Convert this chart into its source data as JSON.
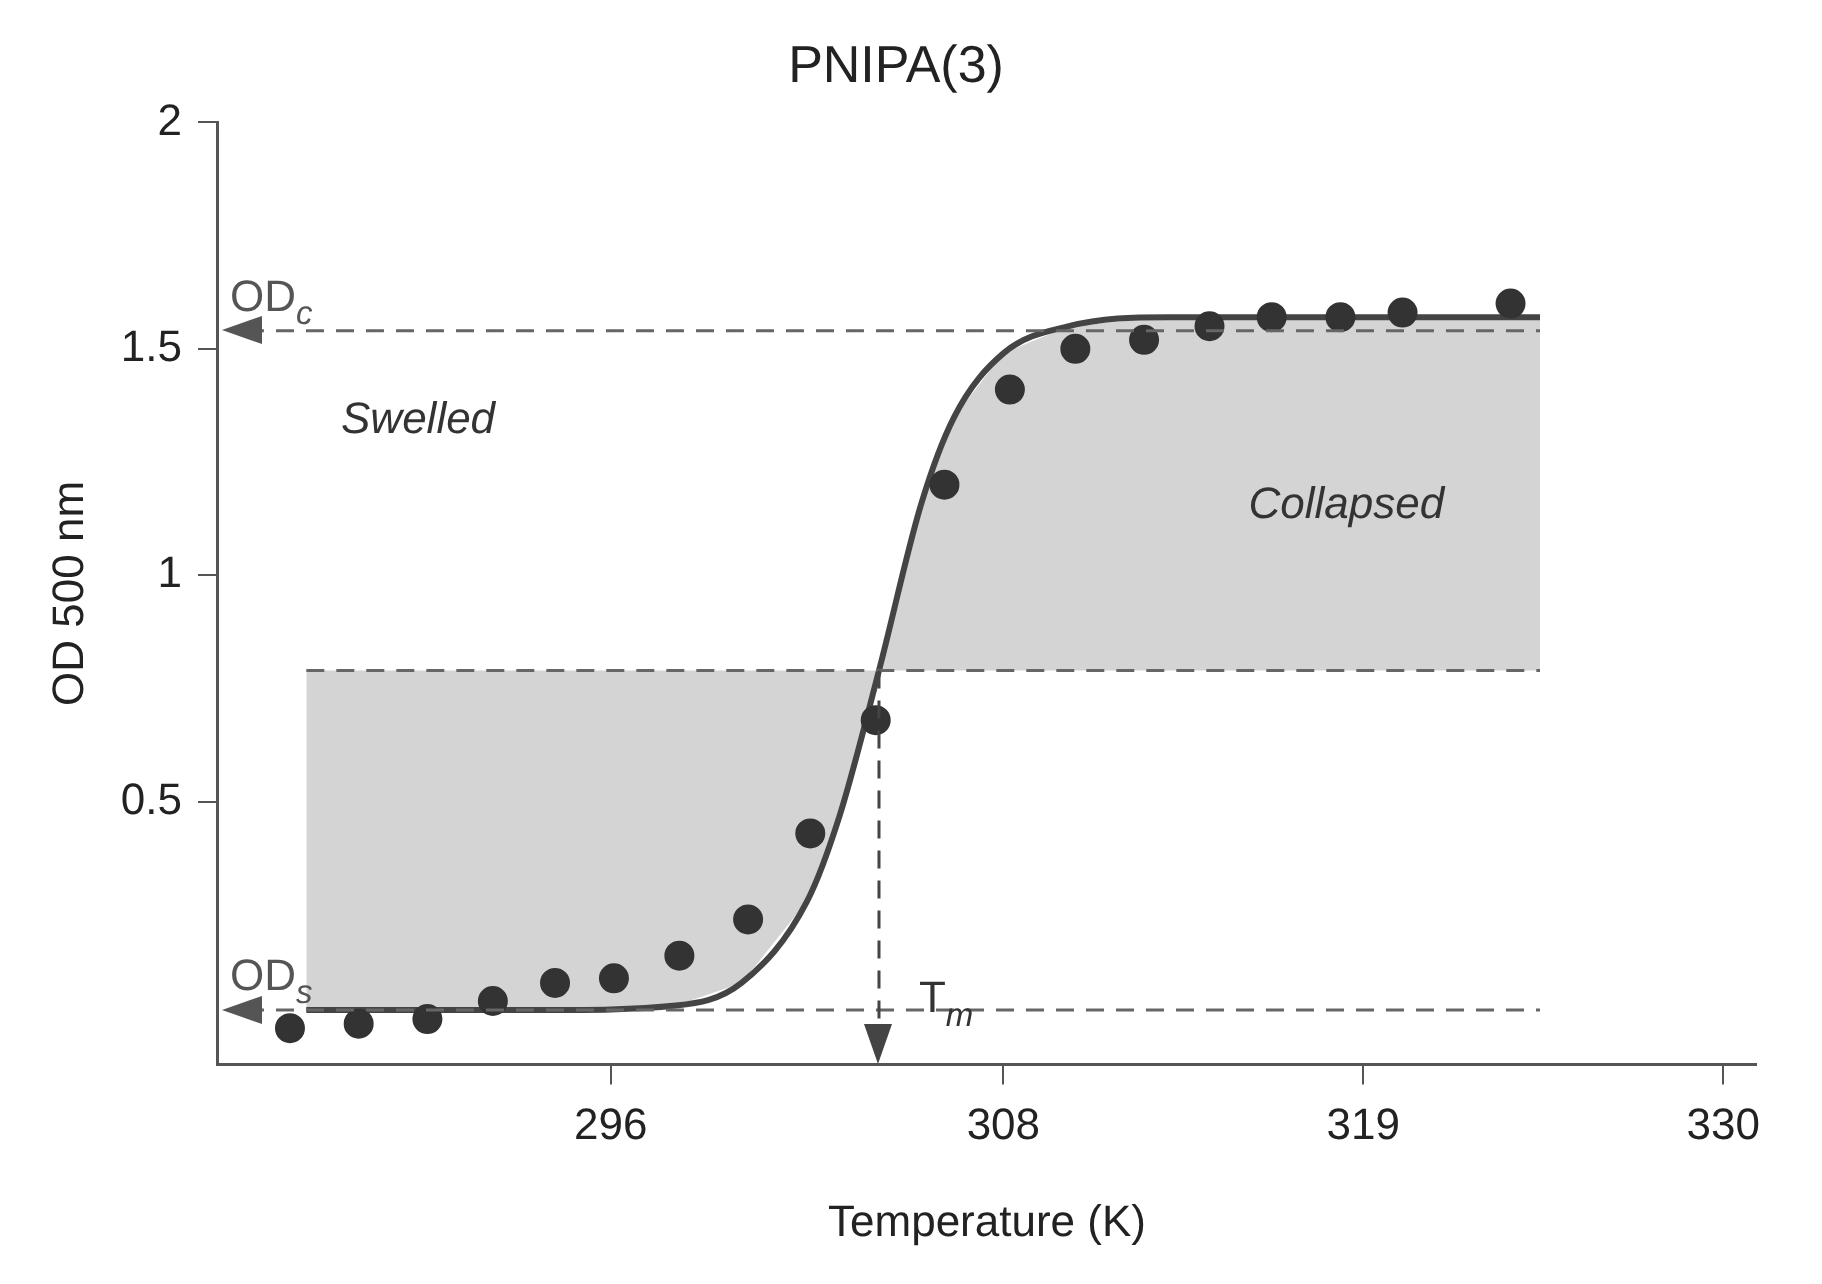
{
  "chart_data": {
    "type": "scatter",
    "title": "PNIPA(3)",
    "xlabel": "Temperature (K)",
    "ylabel": "OD 500 nm",
    "xlim": [
      284,
      331
    ],
    "xticks": [
      296,
      308,
      319,
      330
    ],
    "ylim": [
      -0.08,
      2
    ],
    "yticks": [
      0.5,
      1,
      1.5,
      2
    ],
    "grid": false,
    "legend": false,
    "marker": "circle",
    "series": [
      {
        "type": "scatter",
        "color": "#333333",
        "x": [
          286.2,
          288.3,
          290.4,
          292.4,
          294.3,
          296.1,
          298.1,
          300.2,
          302.1,
          304.1,
          306.2,
          308.2,
          310.2,
          312.3,
          314.3,
          316.2,
          318.3,
          320.2,
          323.5
        ],
        "values": [
          0.0,
          0.01,
          0.02,
          0.06,
          0.1,
          0.11,
          0.16,
          0.24,
          0.43,
          0.68,
          1.2,
          1.41,
          1.5,
          1.52,
          1.55,
          1.57,
          1.57,
          1.58,
          1.6
        ]
      },
      {
        "type": "line",
        "color": "#444444",
        "marker": "none",
        "x": [
          286.7,
          294,
          298,
          300,
          302,
          303,
          304.2,
          305.5,
          306.5,
          308,
          310,
          313,
          324.4
        ],
        "values": [
          0.04,
          0.04,
          0.05,
          0.1,
          0.28,
          0.47,
          0.79,
          1.16,
          1.35,
          1.49,
          1.55,
          1.57,
          1.57
        ],
        "lower": [
          0.04,
          0.04,
          0.05,
          0.1,
          0.28,
          0.47,
          0.79,
          0.79,
          0.79,
          0.79,
          0.79,
          0.79,
          0.79
        ],
        "upper": [
          0.79,
          0.79,
          0.79,
          0.79,
          0.79,
          0.79,
          0.79,
          1.16,
          1.35,
          1.49,
          1.55,
          1.57,
          1.57
        ]
      }
    ],
    "ref_lines": [
      {
        "axis": "y",
        "value": 1.54,
        "label": "OD$_{c}$",
        "color": "#666666",
        "line_style": "dashed"
      },
      {
        "axis": "y",
        "value": 0.04,
        "label": "OD$_{s}$",
        "color": "#666666",
        "line_style": "dashed"
      },
      {
        "axis": "y",
        "value": 0.79,
        "label": null,
        "color": "#666666",
        "line_style": "dashed"
      },
      {
        "axis": "x",
        "value": 304.2,
        "label": "T$_{m}$",
        "color": "#444444",
        "line_style": "dashed"
      }
    ],
    "annotations": [
      "Swelled",
      "Collapsed"
    ]
  }
}
